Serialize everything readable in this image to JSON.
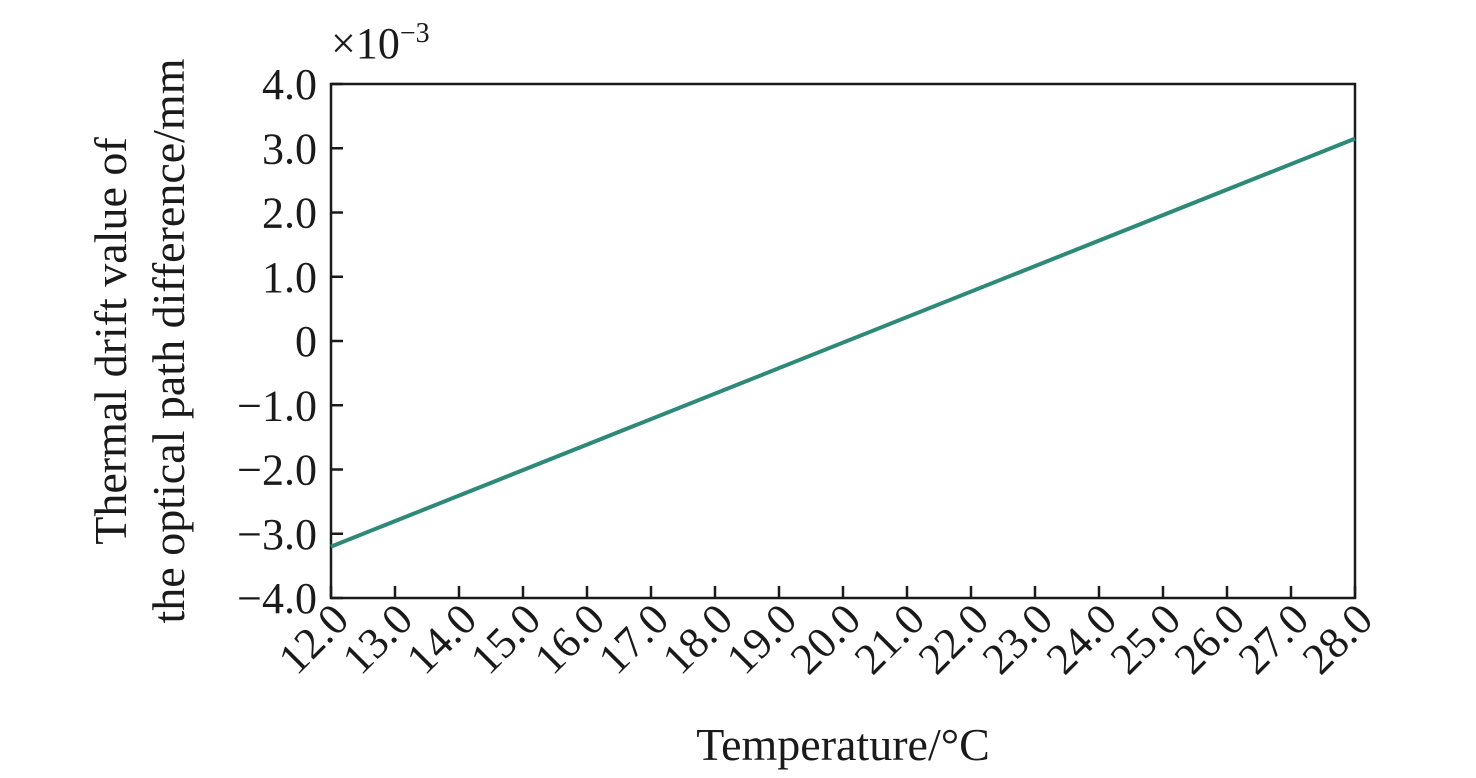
{
  "chart_data": {
    "type": "line",
    "xlabel": "Temperature/°C",
    "ylabel_line1": "Thermal drift value of",
    "ylabel_line2": "the optical path difference/mm",
    "y_multiplier_base": "×10",
    "y_multiplier_exp": "−3",
    "xlim": [
      12.0,
      28.0
    ],
    "ylim": [
      -4.0,
      4.0
    ],
    "x_ticks": [
      "12.0",
      "13.0",
      "14.0",
      "15.0",
      "16.0",
      "17.0",
      "18.0",
      "19.0",
      "20.0",
      "21.0",
      "22.0",
      "23.0",
      "24.0",
      "25.0",
      "26.0",
      "27.0",
      "28.0"
    ],
    "y_ticks": [
      "4.0",
      "3.0",
      "2.0",
      "1.0",
      "0",
      "−1.0",
      "−2.0",
      "−3.0",
      "−4.0"
    ],
    "series": [
      {
        "x": [
          12.0,
          28.0
        ],
        "y": [
          -3.2,
          3.15
        ],
        "color": "#2e8a78"
      }
    ],
    "grid": false
  }
}
